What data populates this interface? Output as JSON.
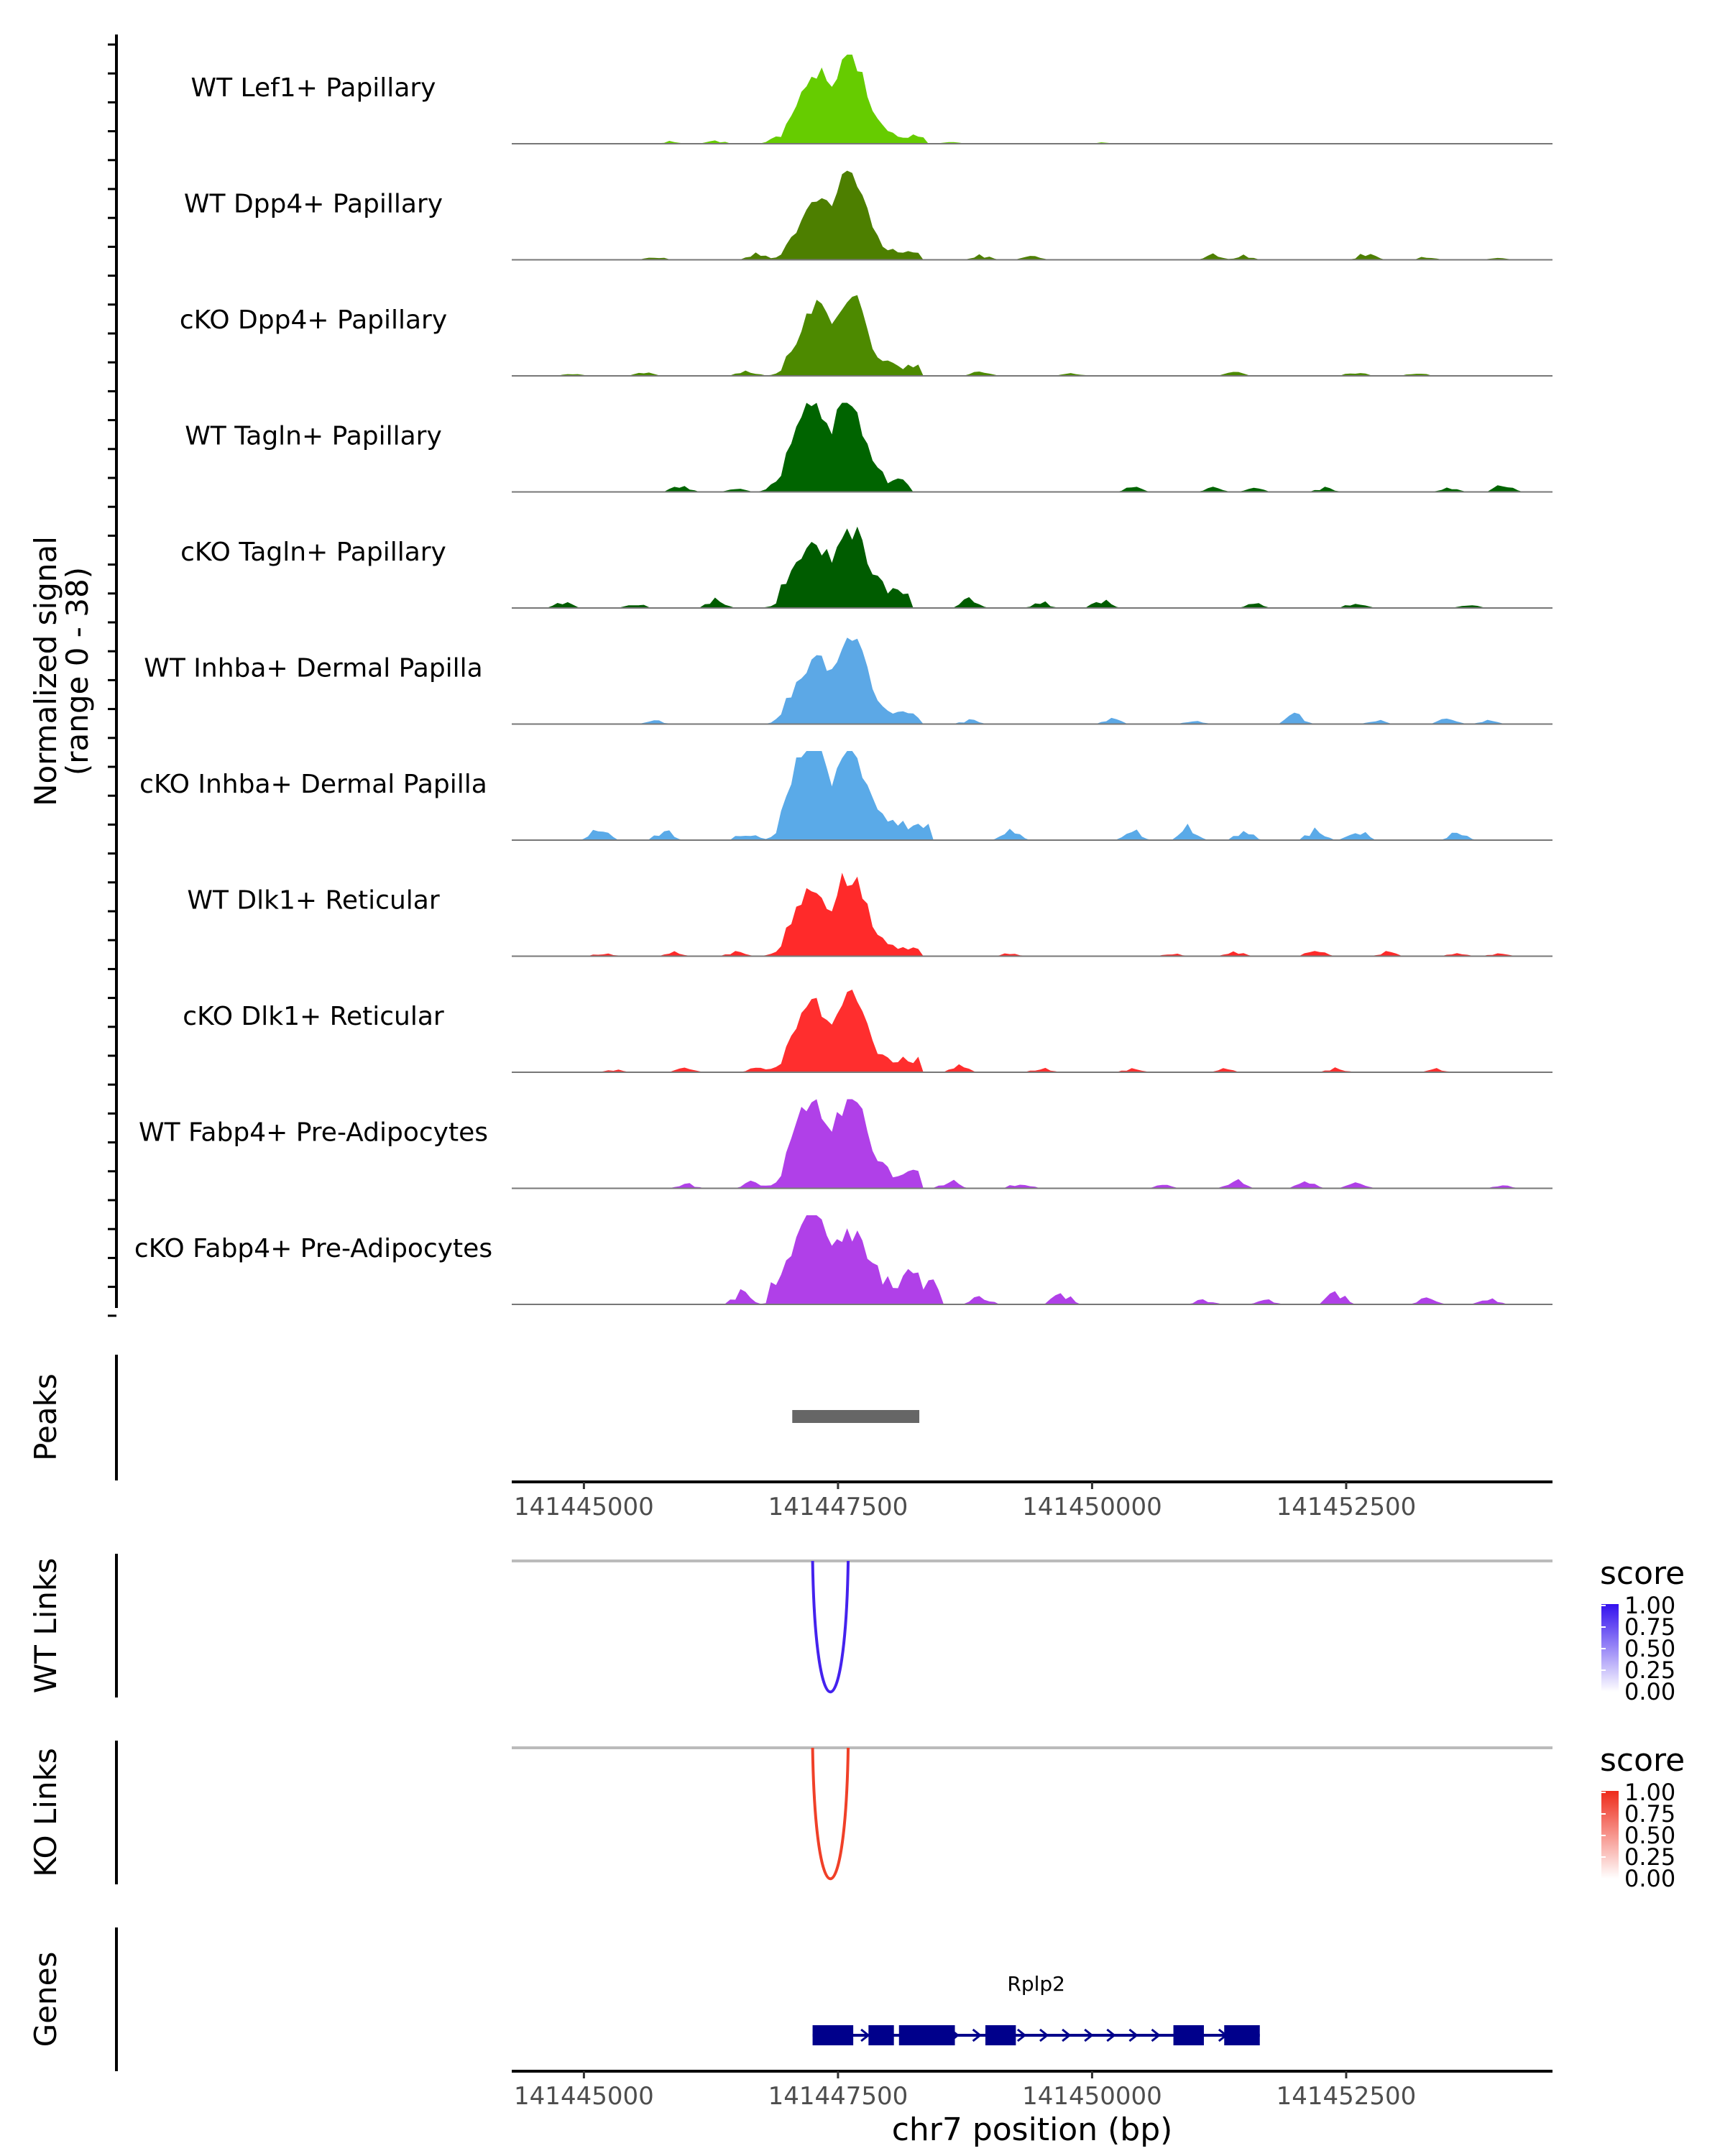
{
  "chart_data": {
    "type": "area",
    "title": "",
    "signal_panel": {
      "ylabel_line1": "Normalized signal",
      "ylabel_line2": "(range 0 - 38)",
      "ylim": [
        0,
        38
      ],
      "x_range_bp": [
        141444290,
        141454530
      ],
      "bin_bp": 50,
      "tracks": [
        {
          "name": "WT Lef1+ Papillary",
          "color": "#66cc00",
          "peaks": [
            [
              141447300,
              0.78,
              160
            ],
            [
              141447620,
              0.98,
              150
            ]
          ],
          "plateau": [
            141446950,
            141448350,
            0.1
          ],
          "background": [
            [
              141445850,
              0.03
            ],
            [
              141446300,
              0.04
            ],
            [
              141446900,
              0.05
            ],
            [
              141448600,
              0.03
            ],
            [
              141450100,
              0.02
            ]
          ]
        },
        {
          "name": "WT Dpp4+ Papillary",
          "color": "#4d7f00",
          "peaks": [
            [
              141447300,
              0.7,
              160
            ],
            [
              141447620,
              0.96,
              150
            ]
          ],
          "plateau": [
            141446950,
            141448300,
            0.1
          ],
          "background": [
            [
              141445700,
              0.04
            ],
            [
              141446700,
              0.07
            ],
            [
              141448900,
              0.06
            ],
            [
              141449400,
              0.05
            ],
            [
              141451200,
              0.06
            ],
            [
              141451500,
              0.05
            ],
            [
              141452700,
              0.08
            ],
            [
              141453300,
              0.04
            ],
            [
              141454000,
              0.03
            ]
          ]
        },
        {
          "name": "cKO Dpp4+ Papillary",
          "color": "#4d8a00",
          "peaks": [
            [
              141447300,
              0.75,
              160
            ],
            [
              141447620,
              0.85,
              150
            ]
          ],
          "plateau": [
            141446950,
            141448300,
            0.12
          ],
          "background": [
            [
              141444900,
              0.03
            ],
            [
              141445600,
              0.04
            ],
            [
              141446600,
              0.07
            ],
            [
              141448900,
              0.07
            ],
            [
              141449800,
              0.04
            ],
            [
              141451400,
              0.05
            ],
            [
              141452600,
              0.05
            ],
            [
              141453200,
              0.04
            ]
          ]
        },
        {
          "name": "WT Tagln+ Papillary",
          "color": "#006400",
          "peaks": [
            [
              141447250,
              0.9,
              170
            ],
            [
              141447580,
              1.0,
              150
            ]
          ],
          "plateau": [
            141446950,
            141448200,
            0.15
          ],
          "background": [
            [
              141445950,
              0.08
            ],
            [
              141446500,
              0.05
            ],
            [
              141446900,
              0.05
            ],
            [
              141450400,
              0.06
            ],
            [
              141451200,
              0.06
            ],
            [
              141451600,
              0.05
            ],
            [
              141452300,
              0.06
            ],
            [
              141453500,
              0.06
            ],
            [
              141454050,
              0.1
            ]
          ]
        },
        {
          "name": "cKO Tagln+ Papillary",
          "color": "#005c00",
          "peaks": [
            [
              141447250,
              0.6,
              160
            ],
            [
              141447620,
              0.75,
              150
            ]
          ],
          "plateau": [
            141446900,
            141448200,
            0.22
          ],
          "background": [
            [
              141444800,
              0.08
            ],
            [
              141445500,
              0.06
            ],
            [
              141446300,
              0.1
            ],
            [
              141448800,
              0.15
            ],
            [
              141449500,
              0.08
            ],
            [
              141450100,
              0.1
            ],
            [
              141451600,
              0.06
            ],
            [
              141452600,
              0.07
            ],
            [
              141453700,
              0.05
            ]
          ]
        },
        {
          "name": "WT Inhba+ Dermal Papilla",
          "color": "#5ca8e6",
          "peaks": [
            [
              141447300,
              0.7,
              160
            ],
            [
              141447620,
              1.0,
              150
            ]
          ],
          "plateau": [
            141446950,
            141448300,
            0.12
          ],
          "background": [
            [
              141445700,
              0.05
            ],
            [
              141447000,
              0.08
            ],
            [
              141448800,
              0.05
            ],
            [
              141450200,
              0.06
            ],
            [
              141451000,
              0.05
            ],
            [
              141452000,
              0.13
            ],
            [
              141452800,
              0.05
            ],
            [
              141453500,
              0.1
            ],
            [
              141453900,
              0.05
            ]
          ]
        },
        {
          "name": "cKO Inhba+ Dermal Papilla",
          "color": "#5aaae8",
          "peaks": [
            [
              141447250,
              0.95,
              160
            ],
            [
              141447620,
              0.9,
              150
            ]
          ],
          "plateau": [
            141446900,
            141448400,
            0.2
          ],
          "background": [
            [
              141445150,
              0.15
            ],
            [
              141445800,
              0.12
            ],
            [
              141446600,
              0.1
            ],
            [
              141447050,
              0.15
            ],
            [
              141449200,
              0.15
            ],
            [
              141450400,
              0.12
            ],
            [
              141450950,
              0.2
            ],
            [
              141451500,
              0.12
            ],
            [
              141452200,
              0.12
            ],
            [
              141452600,
              0.15
            ],
            [
              141453600,
              0.1
            ]
          ]
        },
        {
          "name": "WT Dlk1+ Reticular",
          "color": "#ff2a2a",
          "peaks": [
            [
              141447250,
              0.7,
              160
            ],
            [
              141447620,
              0.88,
              150
            ]
          ],
          "plateau": [
            141446950,
            141448300,
            0.12
          ],
          "background": [
            [
              141445200,
              0.04
            ],
            [
              141445900,
              0.05
            ],
            [
              141446500,
              0.06
            ],
            [
              141449200,
              0.04
            ],
            [
              141450800,
              0.04
            ],
            [
              141451400,
              0.06
            ],
            [
              141452200,
              0.08
            ],
            [
              141452900,
              0.05
            ],
            [
              141453600,
              0.04
            ],
            [
              141454000,
              0.04
            ]
          ]
        },
        {
          "name": "cKO Dlk1+ Reticular",
          "color": "#ff2e2e",
          "peaks": [
            [
              141447250,
              0.7,
              160
            ],
            [
              141447620,
              0.8,
              150
            ]
          ],
          "plateau": [
            141446950,
            141448300,
            0.15
          ],
          "background": [
            [
              141445300,
              0.03
            ],
            [
              141446000,
              0.05
            ],
            [
              141446700,
              0.06
            ],
            [
              141448700,
              0.08
            ],
            [
              141449500,
              0.05
            ],
            [
              141450400,
              0.04
            ],
            [
              141451300,
              0.04
            ],
            [
              141452400,
              0.05
            ],
            [
              141453400,
              0.04
            ]
          ]
        },
        {
          "name": "WT Fabp4+ Pre-Adipocytes",
          "color": "#b040e8",
          "peaks": [
            [
              141447250,
              0.9,
              160
            ],
            [
              141447620,
              0.95,
              150
            ]
          ],
          "plateau": [
            141446950,
            141448300,
            0.18
          ],
          "background": [
            [
              141446000,
              0.06
            ],
            [
              141446650,
              0.08
            ],
            [
              141448600,
              0.1
            ],
            [
              141449300,
              0.08
            ],
            [
              141450700,
              0.05
            ],
            [
              141451400,
              0.12
            ],
            [
              141452100,
              0.1
            ],
            [
              141452600,
              0.08
            ],
            [
              141454050,
              0.04
            ]
          ]
        },
        {
          "name": "cKO Fabp4+ Pre-Adipocytes",
          "color": "#b040e8",
          "peaks": [
            [
              141447250,
              1.0,
              160
            ],
            [
              141447620,
              0.7,
              150
            ]
          ],
          "plateau": [
            141446800,
            141448500,
            0.25
          ],
          "background": [
            [
              141446550,
              0.15
            ],
            [
              141448200,
              0.1
            ],
            [
              141448900,
              0.12
            ],
            [
              141449700,
              0.15
            ],
            [
              141451100,
              0.06
            ],
            [
              141451700,
              0.06
            ],
            [
              141452400,
              0.16
            ],
            [
              141453300,
              0.1
            ],
            [
              141453900,
              0.08
            ]
          ]
        }
      ]
    },
    "peaks_panel": {
      "label": "Peaks",
      "ranges": [
        [
          141447050,
          141448300
        ]
      ],
      "color": "#666666"
    },
    "coordinate_axis": {
      "ticks": [
        141445000,
        141447500,
        141450000,
        141452500
      ],
      "tick_labels": [
        "141445000",
        "141447500",
        "141450000",
        "141452500"
      ],
      "xlabel": "chr7 position (bp)"
    },
    "links": [
      {
        "label": "WT Links",
        "color": "#4422ee",
        "start": 141447250,
        "end": 141447600,
        "score": 1.0,
        "legend_title": "score",
        "legend_ticks": [
          "1.00",
          "0.75",
          "0.50",
          "0.25",
          "0.00"
        ],
        "legend_color_high": "#3311ee"
      },
      {
        "label": "KO Links",
        "color": "#f04028",
        "start": 141447250,
        "end": 141447600,
        "score": 1.0,
        "legend_title": "score",
        "legend_ticks": [
          "1.00",
          "0.75",
          "0.50",
          "0.25",
          "0.00"
        ],
        "legend_color_high": "#ee2a1a"
      }
    ],
    "genes": {
      "label": "Genes",
      "gene_name": "Rplp2",
      "strand": "+",
      "start": 141447250,
      "end": 141451650,
      "color": "#00008b",
      "exons": [
        [
          141447250,
          141447650
        ],
        [
          141447800,
          141448050
        ],
        [
          141448100,
          141448650
        ],
        [
          141448950,
          141449250
        ],
        [
          141450800,
          141451100
        ],
        [
          141451300,
          141451650
        ]
      ]
    }
  }
}
